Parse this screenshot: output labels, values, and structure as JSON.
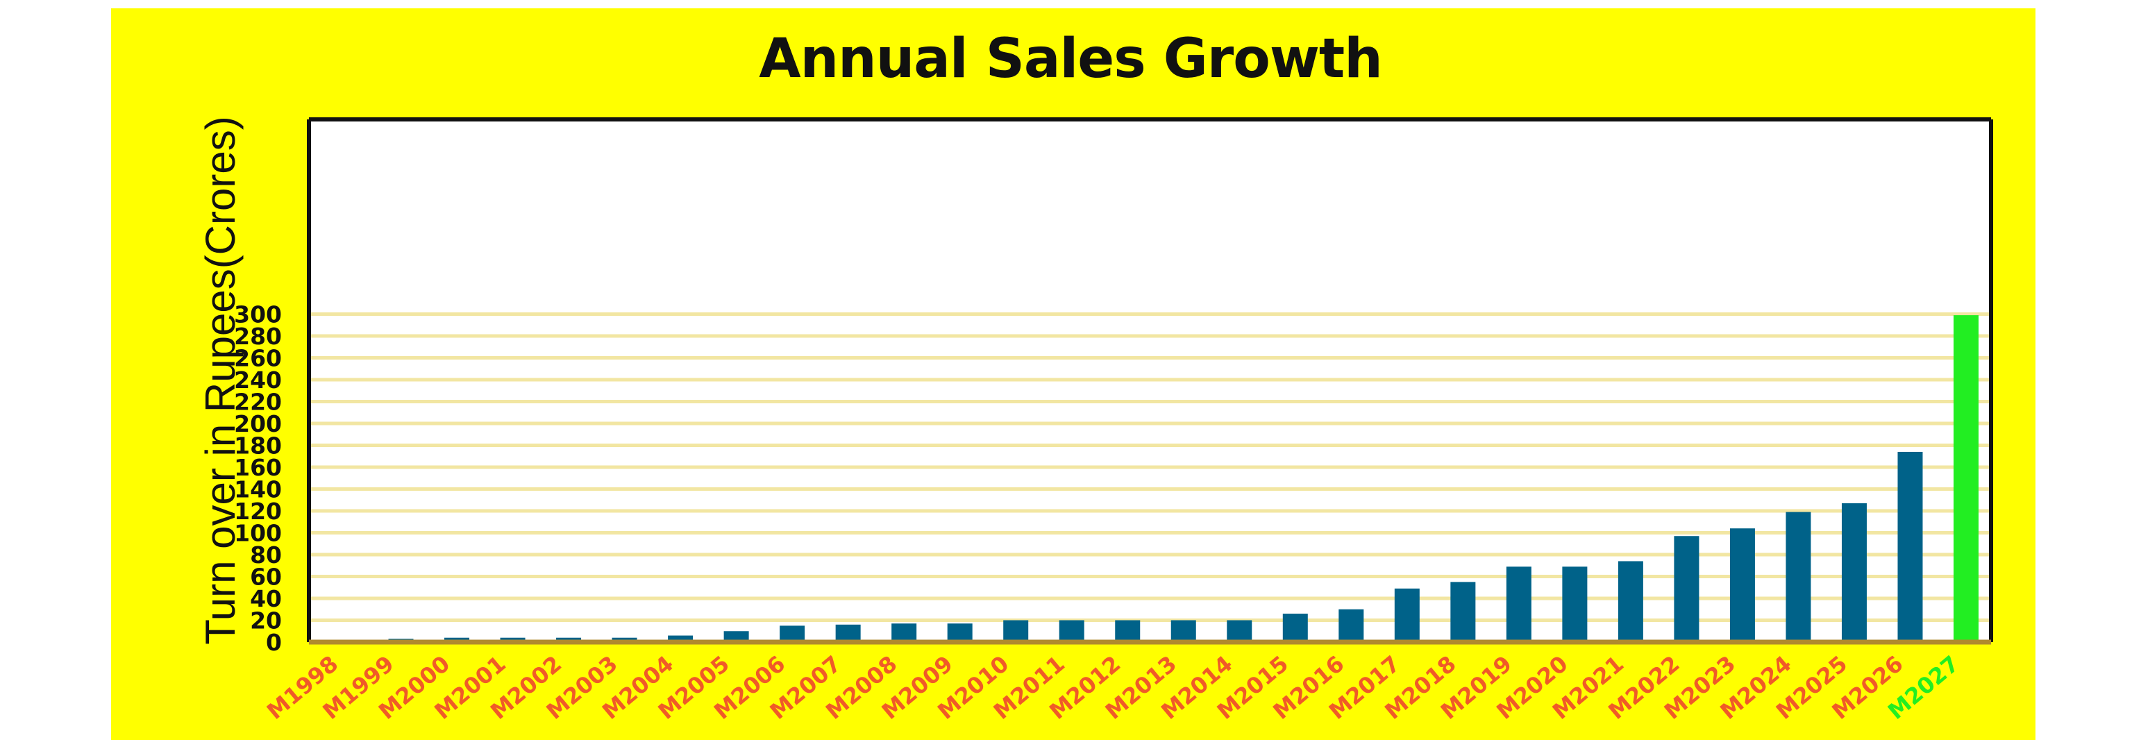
{
  "chart_data": {
    "type": "bar",
    "title": "Annual Sales Growth",
    "xlabel": "",
    "ylabel": "Turn over in Rupees(Crores)",
    "ylim": [
      0,
      310
    ],
    "yticks": [
      0,
      20,
      40,
      60,
      80,
      100,
      120,
      140,
      160,
      180,
      200,
      220,
      240,
      260,
      280,
      300
    ],
    "grid": true,
    "legend": "none",
    "categories": [
      "M1998",
      "M1999",
      "M2000",
      "M2001",
      "M2002",
      "M2003",
      "M2004",
      "M2005",
      "M2006",
      "M2007",
      "M2008",
      "M2009",
      "M2010",
      "M2011",
      "M2012",
      "M2013",
      "M2014",
      "M2015",
      "M2016",
      "M2017",
      "M2018",
      "M2019",
      "M2020",
      "M2021",
      "M2022",
      "M2023",
      "M2024",
      "M2025",
      "M2026",
      "M2027"
    ],
    "values": [
      0,
      3,
      4,
      4,
      4,
      4,
      6,
      10,
      15,
      16,
      17,
      17,
      20,
      20,
      20,
      20,
      20,
      26,
      30,
      49,
      55,
      69,
      69,
      74,
      97,
      104,
      119,
      127,
      174,
      299
    ],
    "highlight_index": 29
  },
  "colors": {
    "background": "#FFFF00",
    "bar": "#006289",
    "bar_highlight": "#22EE22",
    "tick_label": "#F05A28",
    "tick_label_highlight": "#22EE22",
    "gridline": "#F2E6A2",
    "plot_bg": "#FFFFFF",
    "frame": "#111111",
    "axis_base": "#B08A2E"
  }
}
